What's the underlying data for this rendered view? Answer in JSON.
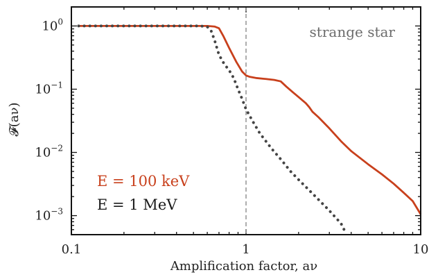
{
  "chart_data": {
    "type": "line",
    "xscale": "log",
    "yscale": "log",
    "xlim": [
      0.1,
      10
    ],
    "ylim": [
      0.0005,
      2
    ],
    "xlabel": "Amplification factor, aν",
    "ylabel": "𝓕(aν)",
    "x_ticks": [
      {
        "value": 0.1,
        "label": "0.1"
      },
      {
        "value": 1,
        "label": "1"
      },
      {
        "value": 10,
        "label": "10"
      }
    ],
    "y_ticks": [
      {
        "value": 1,
        "base": "10",
        "exp": "0"
      },
      {
        "value": 0.1,
        "base": "10",
        "exp": "−1"
      },
      {
        "value": 0.01,
        "base": "10",
        "exp": "−2"
      },
      {
        "value": 0.001,
        "base": "10",
        "exp": "−3"
      }
    ],
    "vline": {
      "x": 1,
      "style": "dashed"
    },
    "annotation": "strange star",
    "series": [
      {
        "name": "E = 100 keV",
        "color": "#c8401c",
        "style": "solid",
        "points": [
          [
            0.11,
            1.0
          ],
          [
            0.2,
            1.0
          ],
          [
            0.4,
            1.0
          ],
          [
            0.6,
            1.0
          ],
          [
            0.66,
            0.98
          ],
          [
            0.7,
            0.92
          ],
          [
            0.74,
            0.7
          ],
          [
            0.8,
            0.45
          ],
          [
            0.88,
            0.27
          ],
          [
            0.95,
            0.19
          ],
          [
            1.0,
            0.165
          ],
          [
            1.05,
            0.157
          ],
          [
            1.15,
            0.15
          ],
          [
            1.3,
            0.145
          ],
          [
            1.45,
            0.14
          ],
          [
            1.58,
            0.133
          ],
          [
            1.7,
            0.11
          ],
          [
            1.85,
            0.09
          ],
          [
            2.0,
            0.075
          ],
          [
            2.2,
            0.06
          ],
          [
            2.3,
            0.052
          ],
          [
            2.4,
            0.044
          ],
          [
            2.6,
            0.036
          ],
          [
            3.0,
            0.024
          ],
          [
            3.5,
            0.015
          ],
          [
            4.0,
            0.0105
          ],
          [
            5.0,
            0.0065
          ],
          [
            6.0,
            0.0045
          ],
          [
            7.0,
            0.0032
          ],
          [
            8.0,
            0.0023
          ],
          [
            9.0,
            0.0017
          ],
          [
            10.0,
            0.00105
          ]
        ]
      },
      {
        "name": "E = 1 MeV",
        "color": "#444444",
        "style": "dotted",
        "points": [
          [
            0.11,
            1.0
          ],
          [
            0.3,
            1.0
          ],
          [
            0.55,
            1.0
          ],
          [
            0.6,
            0.97
          ],
          [
            0.63,
            0.85
          ],
          [
            0.66,
            0.6
          ],
          [
            0.7,
            0.35
          ],
          [
            0.75,
            0.25
          ],
          [
            0.8,
            0.2
          ],
          [
            0.85,
            0.15
          ],
          [
            0.9,
            0.1
          ],
          [
            0.95,
            0.07
          ],
          [
            1.0,
            0.048
          ],
          [
            1.1,
            0.03
          ],
          [
            1.2,
            0.02
          ],
          [
            1.4,
            0.0115
          ],
          [
            1.6,
            0.0075
          ],
          [
            1.8,
            0.005
          ],
          [
            2.0,
            0.0037
          ],
          [
            2.5,
            0.002
          ],
          [
            3.0,
            0.0012
          ],
          [
            3.5,
            0.00075
          ],
          [
            3.7,
            0.00055
          ]
        ]
      }
    ],
    "legend": {
      "placement": "bottom-left",
      "entries": [
        {
          "label": "E = 100 keV",
          "color": "#c8401c"
        },
        {
          "label": "E = 1 MeV",
          "color": "#1a1a1a"
        }
      ]
    }
  }
}
